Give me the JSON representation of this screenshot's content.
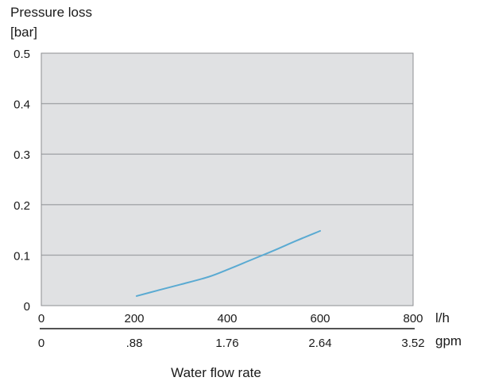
{
  "chart_data": {
    "type": "line",
    "title": "",
    "ylabel_line1": "Pressure loss",
    "ylabel_line2": "[bar]",
    "xlabel": "Water flow rate",
    "x_unit_primary": "l/h",
    "x_unit_secondary": "gpm",
    "xlim": [
      0,
      800
    ],
    "ylim": [
      0,
      0.5
    ],
    "x_ticks": [
      0,
      200,
      400,
      600,
      800
    ],
    "x_tick_labels": [
      "0",
      "200",
      "400",
      "600",
      "800"
    ],
    "x2_tick_labels": [
      "0",
      ".88",
      "1.76",
      "2.64",
      "3.52"
    ],
    "y_ticks": [
      0,
      0.1,
      0.2,
      0.3,
      0.4,
      0.5
    ],
    "y_tick_labels": [
      "0",
      "0.1",
      "0.2",
      "0.3",
      "0.4",
      "0.5"
    ],
    "grid": true,
    "colors": {
      "plot_background": "#e0e1e3",
      "gridline": "#a3a5a8",
      "frame": "#8c8e91",
      "line": "#5aaad2",
      "text": "#1a1a1a"
    },
    "series": [
      {
        "x": [
          205,
          250,
          300,
          360,
          400,
          450,
          500,
          550,
          600
        ],
        "y": [
          0.019,
          0.03,
          0.042,
          0.057,
          0.071,
          0.09,
          0.109,
          0.129,
          0.148
        ]
      }
    ]
  }
}
